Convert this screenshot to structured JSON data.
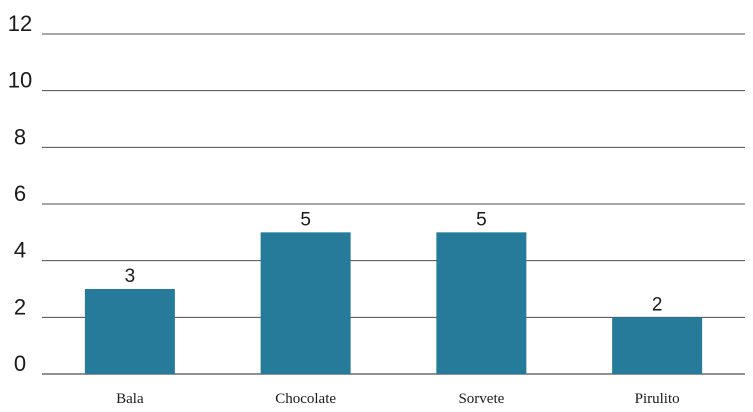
{
  "chart_data": {
    "type": "bar",
    "categories": [
      "Bala",
      "Chocolate",
      "Sorvete",
      "Pirulito"
    ],
    "values": [
      3,
      5,
      5,
      2
    ],
    "yticks": [
      0,
      2,
      4,
      6,
      8,
      10,
      12
    ],
    "ylim": [
      0,
      12
    ],
    "grid": true,
    "data_labels": true,
    "bar_color": "#267b9b"
  }
}
